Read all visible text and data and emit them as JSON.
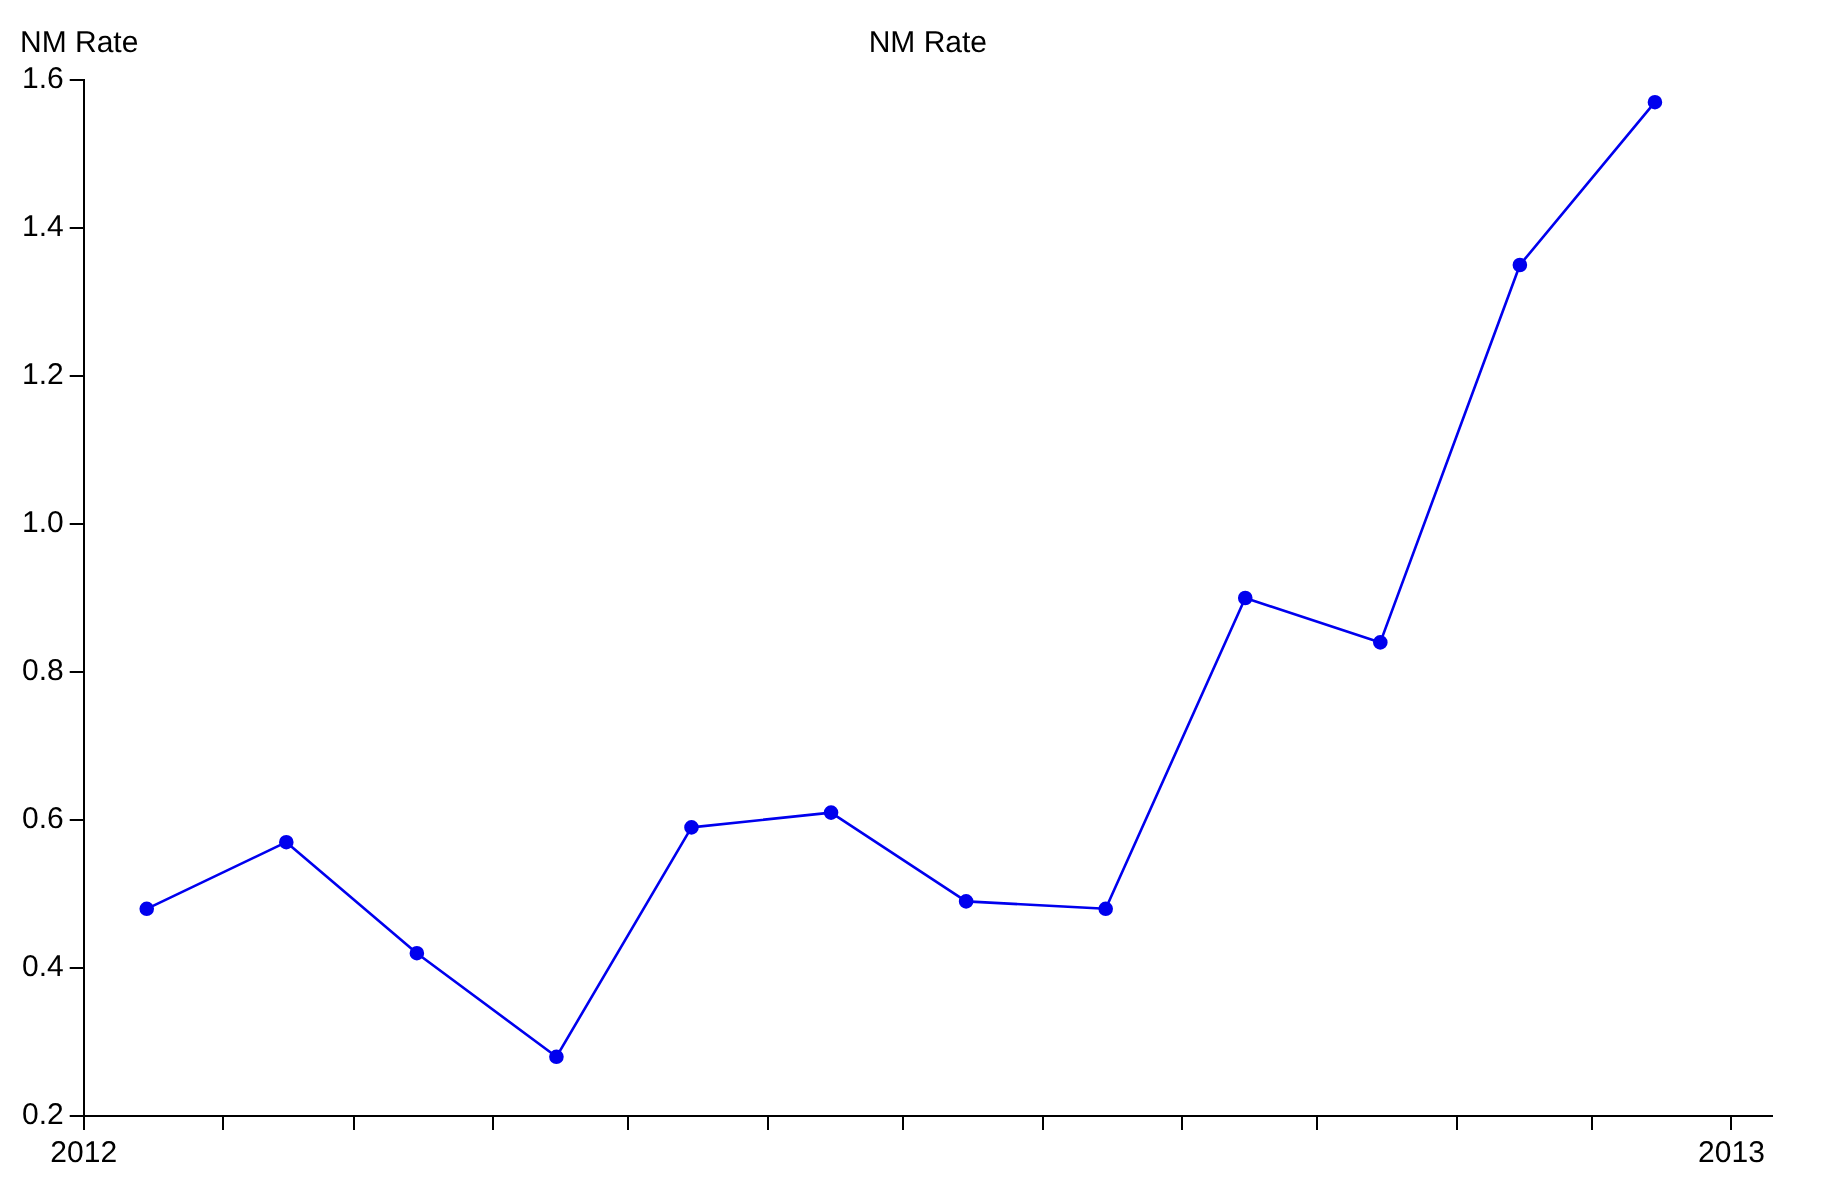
{
  "chart_data": {
    "type": "line",
    "title": "NM Rate",
    "ylabel": "NM Rate",
    "x": [
      "2012-01-15",
      "2012-02-15",
      "2012-03-15",
      "2012-04-15",
      "2012-05-15",
      "2012-06-15",
      "2012-07-15",
      "2012-08-15",
      "2012-09-15",
      "2012-10-15",
      "2012-11-15",
      "2012-12-15"
    ],
    "series": [
      {
        "color": "#0000ee",
        "values": [
          0.48,
          0.57,
          0.42,
          0.28,
          0.59,
          0.61,
          0.49,
          0.48,
          0.9,
          0.84,
          1.35,
          1.57
        ]
      }
    ],
    "xlim": [
      "2012-01-01",
      "2013-01-10"
    ],
    "xticks": [
      {
        "value": "2012-01-01",
        "label": "2012"
      },
      {
        "value": "2012-02-01",
        "label": null
      },
      {
        "value": "2012-03-01",
        "label": null
      },
      {
        "value": "2012-04-01",
        "label": null
      },
      {
        "value": "2012-05-01",
        "label": null
      },
      {
        "value": "2012-06-01",
        "label": null
      },
      {
        "value": "2012-07-01",
        "label": null
      },
      {
        "value": "2012-08-01",
        "label": null
      },
      {
        "value": "2012-09-01",
        "label": null
      },
      {
        "value": "2012-10-01",
        "label": null
      },
      {
        "value": "2012-11-01",
        "label": null
      },
      {
        "value": "2012-12-01",
        "label": null
      },
      {
        "value": "2013-01-01",
        "label": "2013"
      }
    ],
    "ylim": [
      0.2,
      1.6
    ],
    "yticks": [
      0.2,
      0.4,
      0.6,
      0.8,
      {
        "value": 1,
        "label": "1.0"
      },
      1.2,
      1.4,
      1.6
    ],
    "grid": false,
    "legend": false,
    "marker": "circle",
    "line_style": "solid"
  }
}
